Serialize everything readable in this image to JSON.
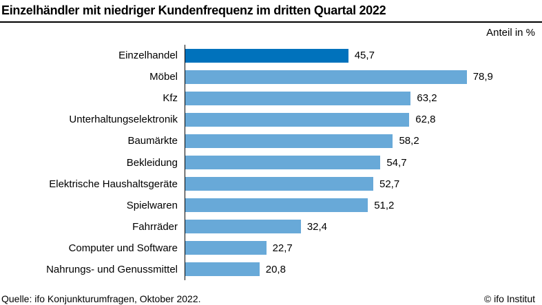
{
  "header": {
    "title": "Einzelhändler mit niedriger Kundenfrequenz im dritten Quartal 2022",
    "unit_label": "Anteil in %"
  },
  "chart_data": {
    "type": "bar",
    "orientation": "horizontal",
    "title": "Einzelhändler mit niedriger Kundenfrequenz im dritten Quartal 2022",
    "xlabel": "Anteil in %",
    "ylabel": "",
    "xlim": [
      0,
      100
    ],
    "grid": false,
    "legend": "none",
    "categories": [
      "Einzelhandel",
      "Möbel",
      "Kfz",
      "Unterhaltungselektronik",
      "Baumärkte",
      "Bekleidung",
      "Elektrische Haushaltsgeräte",
      "Spielwaren",
      "Fahrräder",
      "Computer und Software",
      "Nahrungs- und Genussmittel"
    ],
    "values": [
      45.7,
      78.9,
      63.2,
      62.8,
      58.2,
      54.7,
      52.7,
      51.2,
      32.4,
      22.7,
      20.8
    ],
    "value_labels": [
      "45,7",
      "78,9",
      "63,2",
      "62,8",
      "58,2",
      "54,7",
      "52,7",
      "51,2",
      "32,4",
      "22,7",
      "20,8"
    ],
    "highlight_index": 0,
    "colors": {
      "highlight_bar": "#0072BC",
      "bar": "#68A9D8",
      "axis": "#000000",
      "rule": "#000000",
      "text": "#000000"
    }
  },
  "footer": {
    "source": "Quelle: ifo Konjunkturumfragen, Oktober 2022.",
    "copyright": "© ifo Institut"
  }
}
